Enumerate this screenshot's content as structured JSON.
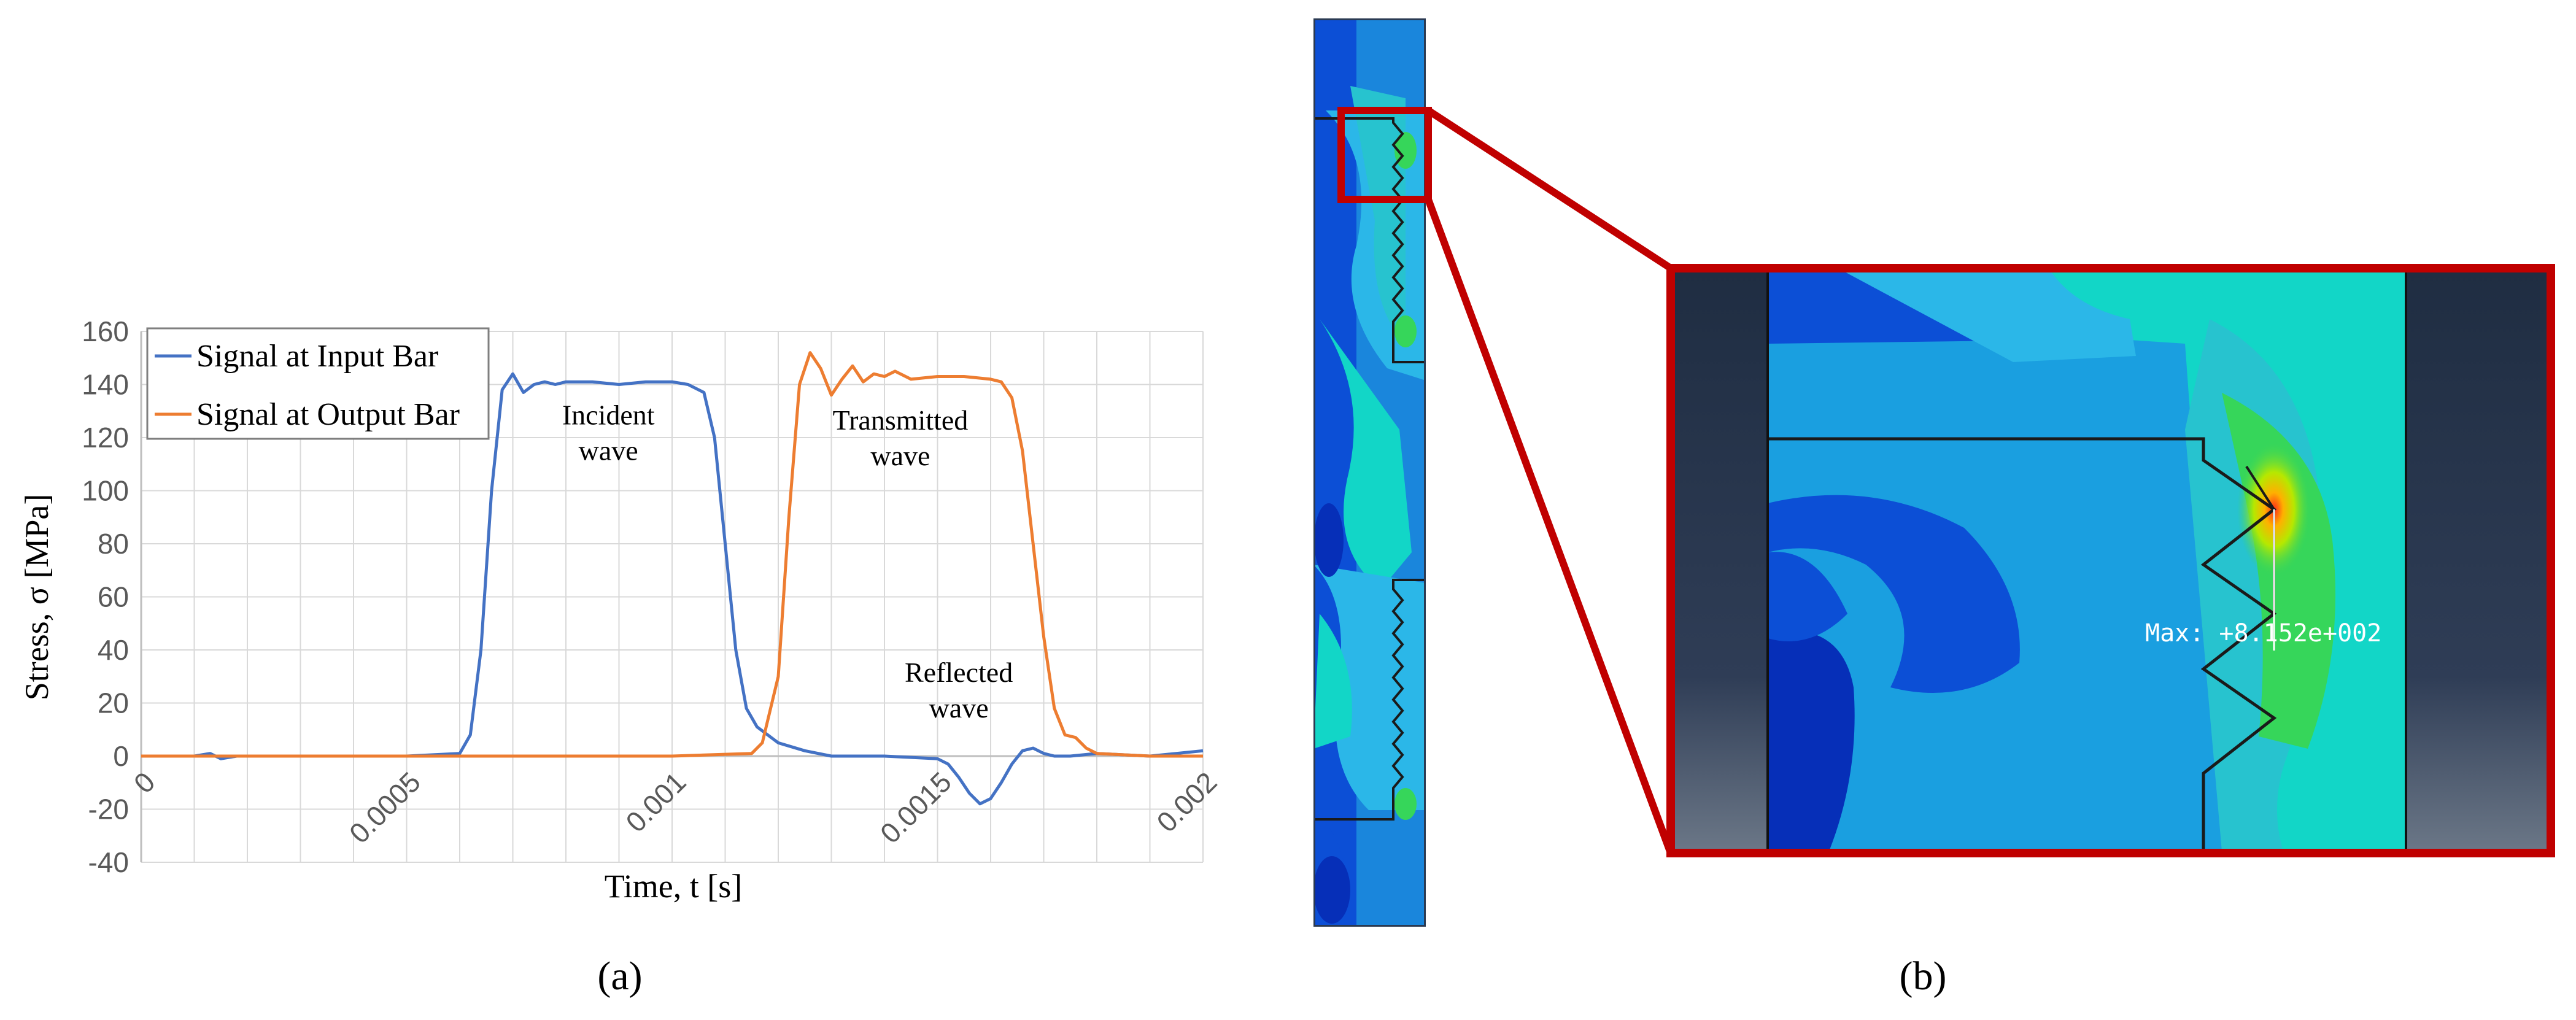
{
  "panels": {
    "a": {
      "label": "(a)",
      "chart_data": {
        "type": "line",
        "xlabel": "Time, t [s]",
        "ylabel": "Stress, σ [MPa]",
        "xlim": [
          0,
          0.002
        ],
        "ylim": [
          -40,
          160
        ],
        "x_ticks": [
          "0",
          "0.0005",
          "0.001",
          "0.0015",
          "0.002"
        ],
        "x_tick_values": [
          0,
          0.0005,
          0.001,
          0.0015,
          0.002
        ],
        "y_ticks": [
          "-40",
          "-20",
          "0",
          "20",
          "40",
          "60",
          "80",
          "100",
          "120",
          "140",
          "160"
        ],
        "y_tick_values": [
          -40,
          -20,
          0,
          20,
          40,
          60,
          80,
          100,
          120,
          140,
          160
        ],
        "grid": "vertical-and-horizontal",
        "legend_position": "top-left",
        "series": [
          {
            "name": "Signal at Input Bar",
            "color": "#4472C4",
            "x": [
              0,
              0.0001,
              0.00013,
              0.00015,
              0.00018,
              0.0002,
              0.0003,
              0.0004,
              0.0005,
              0.0006,
              0.00062,
              0.00064,
              0.00066,
              0.00068,
              0.0007,
              0.00072,
              0.00074,
              0.00076,
              0.00078,
              0.0008,
              0.00085,
              0.0009,
              0.00095,
              0.001,
              0.00103,
              0.00106,
              0.00108,
              0.0011,
              0.00112,
              0.00114,
              0.00116,
              0.00118,
              0.0012,
              0.00125,
              0.0013,
              0.0014,
              0.0015,
              0.00152,
              0.00154,
              0.00156,
              0.00158,
              0.0016,
              0.00162,
              0.00164,
              0.00166,
              0.00168,
              0.0017,
              0.00172,
              0.00175,
              0.0018,
              0.0019,
              0.002
            ],
            "y": [
              0,
              0,
              1,
              -1,
              0,
              0,
              0,
              0,
              0,
              1,
              8,
              40,
              100,
              138,
              144,
              137,
              140,
              141,
              140,
              141,
              141,
              140,
              141,
              141,
              140,
              137,
              120,
              80,
              40,
              18,
              11,
              8,
              5,
              2,
              0,
              0,
              -1,
              -3,
              -8,
              -14,
              -18,
              -16,
              -10,
              -3,
              2,
              3,
              1,
              0,
              0,
              1,
              0,
              2
            ]
          },
          {
            "name": "Signal at Output Bar",
            "color": "#ED7D31",
            "x": [
              0,
              0.0005,
              0.001,
              0.00115,
              0.00117,
              0.0012,
              0.00122,
              0.00124,
              0.00126,
              0.00128,
              0.0013,
              0.00132,
              0.00134,
              0.00136,
              0.00138,
              0.0014,
              0.00142,
              0.00145,
              0.0015,
              0.00155,
              0.0016,
              0.00162,
              0.00164,
              0.00166,
              0.00168,
              0.0017,
              0.00172,
              0.00174,
              0.00176,
              0.00178,
              0.0018,
              0.0019,
              0.002
            ],
            "y": [
              0,
              0,
              0,
              1,
              5,
              30,
              90,
              140,
              152,
              146,
              136,
              142,
              147,
              141,
              144,
              143,
              145,
              142,
              143,
              143,
              142,
              141,
              135,
              115,
              80,
              45,
              18,
              8,
              7,
              3,
              1,
              0,
              0
            ]
          }
        ],
        "annotations": [
          {
            "lines": [
              "Incident",
              "wave"
            ],
            "x": 0.00088,
            "y": 125
          },
          {
            "lines": [
              "Transmitted",
              "wave"
            ],
            "x": 0.00143,
            "y": 123
          },
          {
            "lines": [
              "Reflected",
              "wave"
            ],
            "x": 0.00154,
            "y": 28
          }
        ]
      }
    },
    "b": {
      "label": "(b)",
      "readout": "Max: +8.152e+002",
      "colors": {
        "frame": "#C00000",
        "outer_bar": "#263548",
        "contour_low": "#0A3FD8",
        "contour_mid": "#1BA4E0",
        "contour_cyan": "#10DCC8",
        "contour_high": "#36D65A",
        "contour_peak": "#F0302A"
      }
    }
  }
}
